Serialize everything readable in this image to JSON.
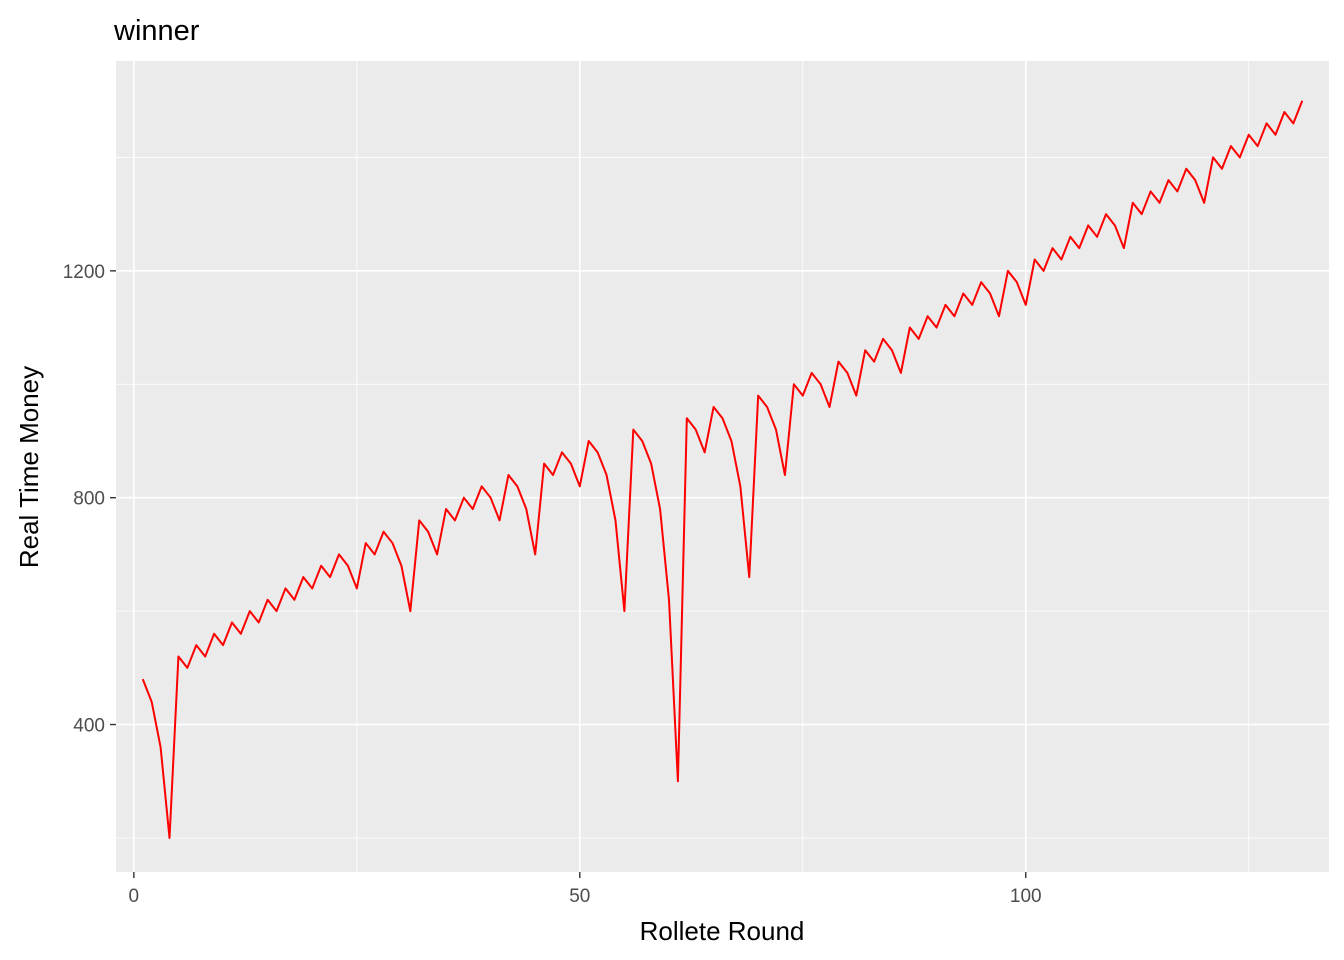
{
  "chart_data": {
    "type": "line",
    "title": "winner",
    "xlabel": "Rollete Round",
    "ylabel": "Real Time Money",
    "xlim": [
      -2,
      134
    ],
    "ylim": [
      140,
      1570
    ],
    "x_ticks": [
      0,
      50,
      100
    ],
    "x_tick_labels": [
      "0",
      "50",
      "100"
    ],
    "x_minor_ticks": [
      25,
      75,
      125
    ],
    "y_ticks": [
      400,
      800,
      1200
    ],
    "y_tick_labels": [
      "400",
      "800",
      "1200"
    ],
    "y_minor_ticks": [
      200,
      600,
      1000,
      1400
    ],
    "grid": true,
    "background": "#ebebeb",
    "grid_color": "#ffffff",
    "line_color": "#ff0000",
    "series": [
      {
        "x": [
          1,
          2,
          3,
          4,
          5,
          6,
          7,
          8,
          9,
          10,
          11,
          12,
          13,
          14,
          15,
          16,
          17,
          18,
          19,
          20,
          21,
          22,
          23,
          24,
          25,
          26,
          27,
          28,
          29,
          30,
          31,
          32,
          33,
          34,
          35,
          36,
          37,
          38,
          39,
          40,
          41,
          42,
          43,
          44,
          45,
          46,
          47,
          48,
          49,
          50,
          51,
          52,
          53,
          54,
          55,
          56,
          57,
          58,
          59,
          60,
          61,
          62,
          63,
          64,
          65,
          66,
          67,
          68,
          69,
          70,
          71,
          72,
          73,
          74,
          75,
          76,
          77,
          78,
          79,
          80,
          81,
          82,
          83,
          84,
          85,
          86,
          87,
          88,
          89,
          90,
          91,
          92,
          93,
          94,
          95,
          96,
          97,
          98,
          99,
          100,
          101,
          102,
          103,
          104,
          105,
          106,
          107,
          108,
          109,
          110,
          111,
          112,
          113,
          114,
          115,
          116,
          117,
          118,
          119,
          120,
          121,
          122,
          123,
          124,
          125,
          126,
          127,
          128,
          129,
          130,
          131
        ],
        "y": [
          480,
          440,
          360,
          200,
          520,
          500,
          540,
          520,
          560,
          540,
          580,
          560,
          600,
          580,
          620,
          600,
          640,
          620,
          660,
          640,
          680,
          660,
          700,
          680,
          640,
          720,
          700,
          740,
          720,
          680,
          600,
          760,
          740,
          700,
          780,
          760,
          800,
          780,
          820,
          800,
          760,
          840,
          820,
          780,
          700,
          860,
          840,
          880,
          860,
          820,
          900,
          880,
          840,
          760,
          600,
          920,
          900,
          860,
          780,
          620,
          300,
          940,
          920,
          880,
          960,
          940,
          900,
          820,
          660,
          980,
          960,
          920,
          840,
          1000,
          980,
          1020,
          1000,
          960,
          1040,
          1020,
          980,
          1060,
          1040,
          1080,
          1060,
          1020,
          1100,
          1080,
          1120,
          1100,
          1140,
          1120,
          1160,
          1140,
          1180,
          1160,
          1120,
          1200,
          1180,
          1140,
          1220,
          1200,
          1240,
          1220,
          1260,
          1240,
          1280,
          1260,
          1300,
          1280,
          1240,
          1320,
          1300,
          1340,
          1320,
          1360,
          1340,
          1380,
          1360,
          1320,
          1400,
          1380,
          1420,
          1400,
          1440,
          1420,
          1460,
          1440,
          1480,
          1460,
          1500
        ]
      }
    ]
  }
}
